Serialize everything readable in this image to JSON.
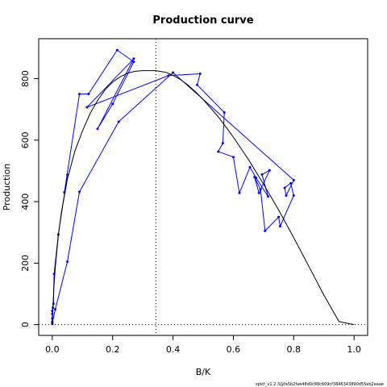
{
  "chart_data": {
    "type": "line",
    "title": "Production curve",
    "xlabel": "B/K",
    "ylabel": "Production",
    "xlim": [
      -0.045,
      1.045
    ],
    "ylim": [
      -35,
      930
    ],
    "xticks": [
      0.0,
      0.2,
      0.4,
      0.6,
      0.8,
      1.0
    ],
    "xtick_labels": [
      "0.0",
      "0.2",
      "0.4",
      "0.6",
      "0.8",
      "1.0"
    ],
    "yticks": [
      0,
      200,
      400,
      600,
      800
    ],
    "ytick_labels": [
      "0",
      "200",
      "400",
      "600",
      "800"
    ],
    "grid": false,
    "legend": null,
    "series": [
      {
        "color": "#0000ff",
        "style": "line-with-points",
        "x": [
          0.0,
          0.0,
          0.0,
          0.0,
          0.0,
          0.002,
          0.004,
          0.006,
          0.02,
          0.05,
          0.04,
          0.09,
          0.12,
          0.215,
          0.27,
          0.2,
          0.15,
          0.27,
          0.115,
          0.385,
          0.49,
          0.48,
          0.57,
          0.565,
          0.55,
          0.6,
          0.62,
          0.655,
          0.675,
          0.715,
          0.695,
          0.72,
          0.685,
          0.67,
          0.69,
          0.705,
          0.75,
          0.755,
          0.8,
          0.79,
          0.77,
          0.775,
          0.8,
          0.4,
          0.22,
          0.09,
          0.05,
          0.01,
          0.0
        ],
        "y": [
          2,
          10,
          20,
          35,
          45,
          55,
          68,
          165,
          293,
          487,
          430,
          750,
          750,
          893,
          855,
          718,
          637,
          865,
          707,
          810,
          816,
          780,
          690,
          590,
          563,
          545,
          428,
          512,
          478,
          417,
          488,
          502,
          428,
          480,
          440,
          305,
          350,
          320,
          420,
          460,
          445,
          420,
          470,
          820,
          660,
          432,
          205,
          50,
          5
        ]
      },
      {
        "color": "#000000",
        "style": "line",
        "x": [
          0.0,
          0.005,
          0.01,
          0.02,
          0.03,
          0.05,
          0.075,
          0.1,
          0.125,
          0.15,
          0.175,
          0.2,
          0.225,
          0.25,
          0.275,
          0.3,
          0.325,
          0.343,
          0.375,
          0.4,
          0.425,
          0.45,
          0.475,
          0.5,
          0.55,
          0.6,
          0.65,
          0.7,
          0.75,
          0.8,
          0.85,
          0.9,
          0.95,
          1.0
        ],
        "y": [
          0,
          118,
          187,
          289,
          364,
          473,
          565,
          630,
          686,
          729,
          764,
          789,
          806,
          818,
          824,
          826,
          826,
          826,
          821,
          811,
          797,
          779,
          757,
          732,
          676,
          610,
          537,
          457,
          373,
          283,
          190,
          96,
          10,
          0
        ]
      }
    ],
    "reference_lines": [
      {
        "orientation": "vertical",
        "value": 0.343,
        "style": "dotted",
        "color": "#000000"
      },
      {
        "orientation": "horizontal",
        "value": 0,
        "style": "dotted",
        "color": "#000000"
      }
    ]
  },
  "footer_text": "spict_v1.2.3@fa5b2fae48d0c88c609cf3846343890d55eb2eaae"
}
